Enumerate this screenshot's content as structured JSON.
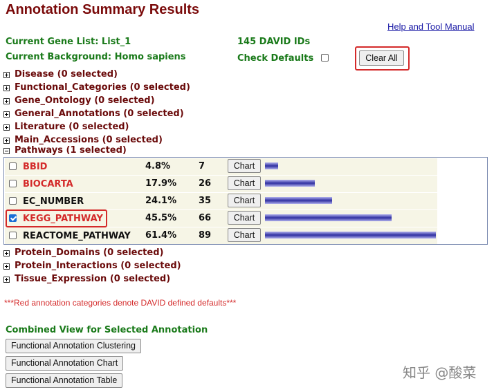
{
  "header": {
    "title": "Annotation Summary Results",
    "help_link": "Help and Tool Manual"
  },
  "info": {
    "gene_list": "Current Gene List: List_1",
    "background": "Current Background: Homo sapiens",
    "ids": "145 DAVID IDs",
    "check_defaults": "Check Defaults",
    "clear_all": "Clear All"
  },
  "categories": [
    {
      "label": "Disease (0 selected)",
      "expanded": false
    },
    {
      "label": "Functional_Categories (0 selected)",
      "expanded": false
    },
    {
      "label": "Gene_Ontology (0 selected)",
      "expanded": false
    },
    {
      "label": "General_Annotations (0 selected)",
      "expanded": false
    },
    {
      "label": "Literature (0 selected)",
      "expanded": false
    },
    {
      "label": "Main_Accessions (0 selected)",
      "expanded": false
    },
    {
      "label": "Pathways (1 selected)",
      "expanded": true,
      "rows": [
        {
          "name": "BBID",
          "default": true,
          "checked": false,
          "percent": "4.8%",
          "count": 7,
          "button": "Chart"
        },
        {
          "name": "BIOCARTA",
          "default": true,
          "checked": false,
          "percent": "17.9%",
          "count": 26,
          "button": "Chart"
        },
        {
          "name": "EC_NUMBER",
          "default": false,
          "checked": false,
          "percent": "24.1%",
          "count": 35,
          "button": "Chart"
        },
        {
          "name": "KEGG_PATHWAY",
          "default": true,
          "checked": true,
          "percent": "45.5%",
          "count": 66,
          "button": "Chart"
        },
        {
          "name": "REACTOME_PATHWAY",
          "default": false,
          "checked": false,
          "percent": "61.4%",
          "count": 89,
          "button": "Chart"
        }
      ]
    },
    {
      "label": "Protein_Domains (0 selected)",
      "expanded": false
    },
    {
      "label": "Protein_Interactions (0 selected)",
      "expanded": false
    },
    {
      "label": "Tissue_Expression (0 selected)",
      "expanded": false
    }
  ],
  "note": "***Red annotation categories denote DAVID defined defaults***",
  "combined": {
    "title": "Combined View for Selected Annotation",
    "buttons": [
      "Functional Annotation Clustering",
      "Functional Annotation Chart",
      "Functional Annotation Table"
    ]
  },
  "watermark": "知乎 @酸菜"
}
